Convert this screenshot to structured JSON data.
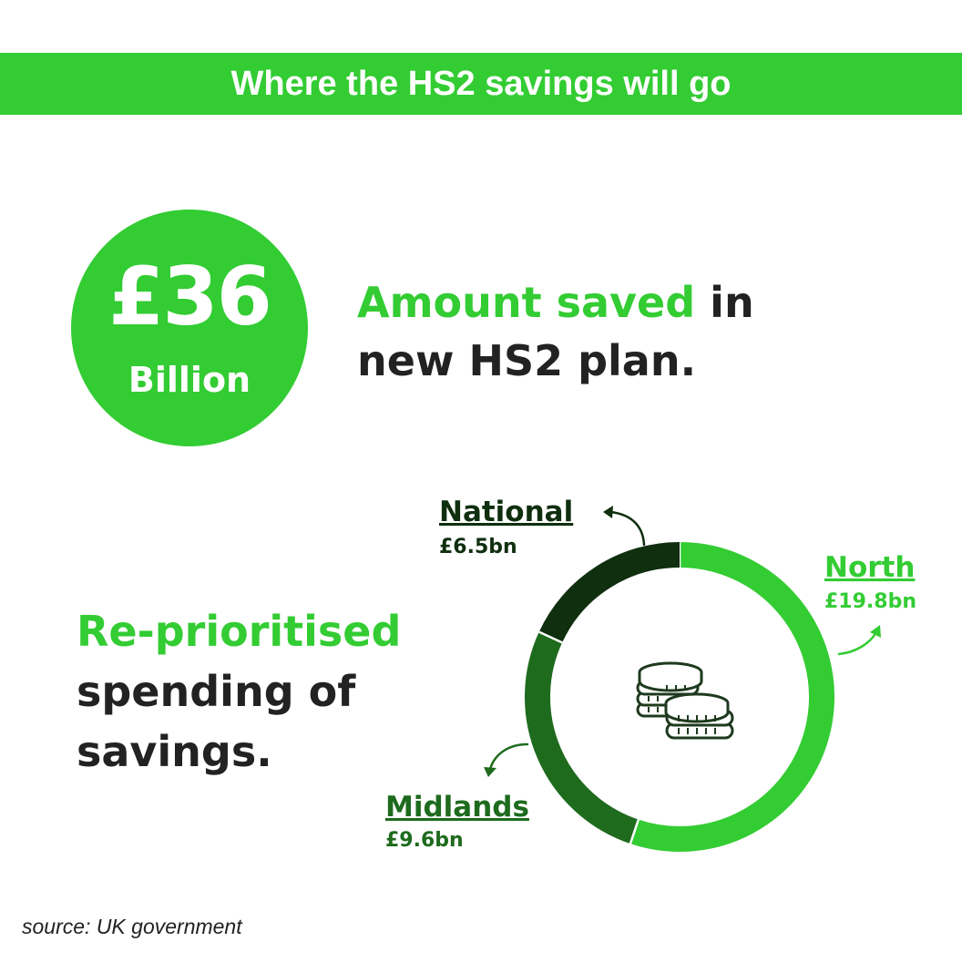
{
  "banner": {
    "title": "Where the HS2 savings will go"
  },
  "headline_stat": {
    "amount": "£36",
    "unit": "Billion"
  },
  "headline_text": {
    "highlight": "Amount saved",
    "rest_line1": " in",
    "line2": "new HS2 plan."
  },
  "subhead_text": {
    "line1": "Re-prioritised",
    "line2": "spending of",
    "line3": "savings."
  },
  "source": "source: UK government",
  "colors": {
    "accent": "#33cc33",
    "north": "#33cc33",
    "midlands": "#1e6b1e",
    "national": "#0f2f0f",
    "text": "#222222"
  },
  "icons": {
    "center": "coins-icon"
  },
  "chart_data": {
    "type": "pie",
    "style": "donut",
    "unit": "£bn",
    "total": 36,
    "slices": [
      {
        "name": "North",
        "value": 19.8,
        "label": "£19.8bn",
        "color": "#33cc33"
      },
      {
        "name": "Midlands",
        "value": 9.6,
        "label": "£9.6bn",
        "color": "#1e6b1e"
      },
      {
        "name": "National",
        "value": 6.5,
        "label": "£6.5bn",
        "color": "#0f2f0f"
      }
    ]
  }
}
